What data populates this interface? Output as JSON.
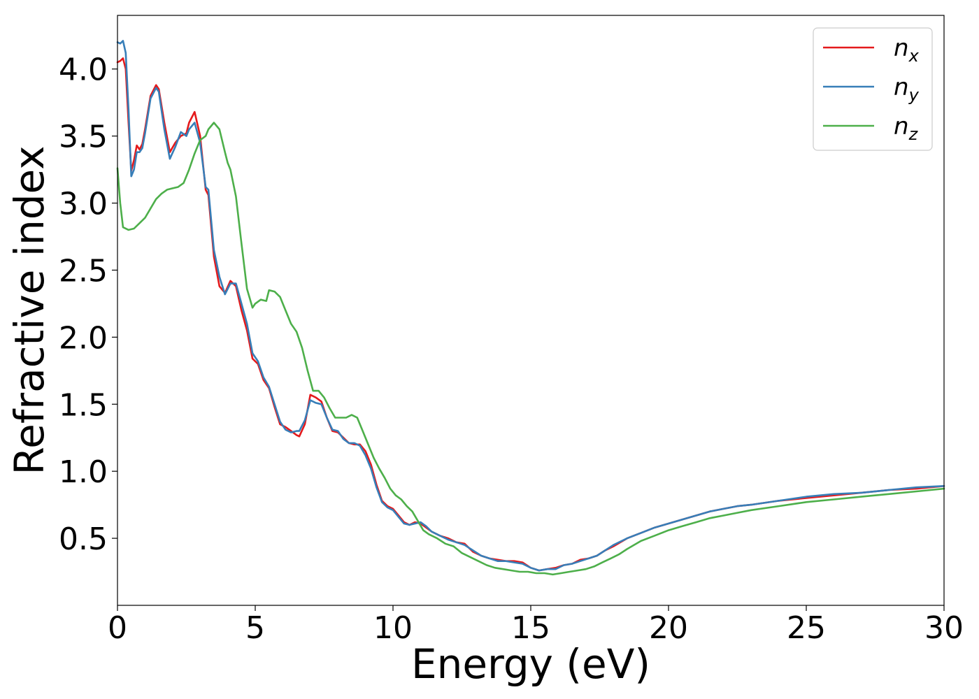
{
  "chart_data": {
    "type": "line",
    "title": "",
    "xlabel": "Energy (eV)",
    "ylabel": "Refractive index",
    "xlim": [
      0,
      30
    ],
    "ylim": [
      0.0,
      4.4
    ],
    "xticks": [
      0,
      5,
      10,
      15,
      20,
      25,
      30
    ],
    "xtick_labels": [
      "0",
      "5",
      "10",
      "15",
      "20",
      "25",
      "30"
    ],
    "yticks": [
      0.5,
      1.0,
      1.5,
      2.0,
      2.5,
      3.0,
      3.5,
      4.0
    ],
    "ytick_labels": [
      "0.5",
      "1.0",
      "1.5",
      "2.0",
      "2.5",
      "3.0",
      "3.5",
      "4.0"
    ],
    "grid": false,
    "legend": {
      "position": "top-right"
    },
    "series": [
      {
        "name": "n_x",
        "label_base": "n",
        "label_sub": "x",
        "color": "#e41a1c",
        "x": [
          0,
          0.1,
          0.2,
          0.3,
          0.4,
          0.5,
          0.6,
          0.7,
          0.8,
          0.9,
          1.0,
          1.2,
          1.4,
          1.5,
          1.7,
          1.9,
          2.1,
          2.3,
          2.5,
          2.6,
          2.8,
          3.0,
          3.2,
          3.3,
          3.5,
          3.7,
          3.9,
          4.1,
          4.3,
          4.5,
          4.7,
          4.9,
          5.1,
          5.3,
          5.5,
          5.7,
          5.9,
          6.1,
          6.3,
          6.5,
          6.6,
          6.8,
          7.0,
          7.2,
          7.4,
          7.6,
          7.8,
          8.0,
          8.2,
          8.4,
          8.6,
          8.8,
          9.0,
          9.2,
          9.4,
          9.6,
          9.8,
          10.0,
          10.2,
          10.4,
          10.6,
          10.8,
          11.0,
          11.2,
          11.4,
          11.7,
          12.0,
          12.3,
          12.6,
          12.9,
          13.2,
          13.5,
          13.8,
          14.1,
          14.4,
          14.7,
          15.0,
          15.3,
          15.6,
          15.9,
          16.2,
          16.5,
          16.8,
          17.1,
          17.4,
          17.7,
          18.0,
          18.5,
          19.0,
          19.5,
          20.0,
          20.5,
          21.0,
          21.5,
          22.0,
          22.5,
          23.0,
          24.0,
          25.0,
          26.0,
          27.0,
          28.0,
          29.0,
          30.0
        ],
        "y": [
          4.05,
          4.06,
          4.08,
          4.0,
          3.6,
          3.24,
          3.32,
          3.43,
          3.4,
          3.44,
          3.55,
          3.8,
          3.88,
          3.85,
          3.6,
          3.38,
          3.45,
          3.5,
          3.52,
          3.6,
          3.68,
          3.5,
          3.1,
          3.06,
          2.6,
          2.38,
          2.33,
          2.42,
          2.38,
          2.2,
          2.05,
          1.84,
          1.8,
          1.68,
          1.62,
          1.48,
          1.35,
          1.33,
          1.3,
          1.27,
          1.26,
          1.35,
          1.57,
          1.55,
          1.52,
          1.4,
          1.3,
          1.29,
          1.25,
          1.21,
          1.2,
          1.2,
          1.15,
          1.05,
          0.9,
          0.78,
          0.74,
          0.72,
          0.67,
          0.62,
          0.6,
          0.62,
          0.61,
          0.58,
          0.55,
          0.52,
          0.5,
          0.47,
          0.46,
          0.4,
          0.37,
          0.35,
          0.34,
          0.33,
          0.33,
          0.32,
          0.28,
          0.26,
          0.27,
          0.28,
          0.3,
          0.31,
          0.34,
          0.35,
          0.37,
          0.41,
          0.44,
          0.5,
          0.54,
          0.58,
          0.61,
          0.64,
          0.67,
          0.7,
          0.72,
          0.74,
          0.75,
          0.78,
          0.8,
          0.82,
          0.84,
          0.86,
          0.87,
          0.89
        ]
      },
      {
        "name": "n_y",
        "label_base": "n",
        "label_sub": "y",
        "color": "#377eb8",
        "x": [
          0,
          0.1,
          0.2,
          0.3,
          0.4,
          0.5,
          0.6,
          0.7,
          0.8,
          0.9,
          1.0,
          1.2,
          1.4,
          1.5,
          1.7,
          1.9,
          2.1,
          2.3,
          2.5,
          2.6,
          2.8,
          3.0,
          3.2,
          3.3,
          3.5,
          3.7,
          3.9,
          4.1,
          4.3,
          4.5,
          4.7,
          4.9,
          5.1,
          5.3,
          5.5,
          5.7,
          5.9,
          6.1,
          6.3,
          6.5,
          6.6,
          6.8,
          7.0,
          7.2,
          7.4,
          7.6,
          7.8,
          8.0,
          8.2,
          8.4,
          8.6,
          8.8,
          9.0,
          9.2,
          9.4,
          9.6,
          9.8,
          10.0,
          10.2,
          10.4,
          10.6,
          10.8,
          11.0,
          11.2,
          11.4,
          11.7,
          12.0,
          12.3,
          12.6,
          12.9,
          13.2,
          13.5,
          13.8,
          14.1,
          14.4,
          14.7,
          15.0,
          15.3,
          15.6,
          15.9,
          16.2,
          16.5,
          16.8,
          17.1,
          17.4,
          17.7,
          18.0,
          18.5,
          19.0,
          19.5,
          20.0,
          20.5,
          21.0,
          21.5,
          22.0,
          22.5,
          23.0,
          24.0,
          25.0,
          26.0,
          27.0,
          28.0,
          29.0,
          30.0
        ],
        "y": [
          4.2,
          4.19,
          4.21,
          4.12,
          3.7,
          3.2,
          3.25,
          3.38,
          3.38,
          3.41,
          3.52,
          3.78,
          3.86,
          3.83,
          3.55,
          3.33,
          3.42,
          3.53,
          3.5,
          3.55,
          3.6,
          3.45,
          3.12,
          3.1,
          2.65,
          2.45,
          2.32,
          2.4,
          2.4,
          2.25,
          2.1,
          1.88,
          1.82,
          1.7,
          1.63,
          1.5,
          1.37,
          1.31,
          1.29,
          1.3,
          1.3,
          1.38,
          1.53,
          1.51,
          1.5,
          1.4,
          1.31,
          1.3,
          1.24,
          1.21,
          1.21,
          1.19,
          1.12,
          1.02,
          0.88,
          0.77,
          0.73,
          0.71,
          0.66,
          0.61,
          0.6,
          0.61,
          0.62,
          0.59,
          0.55,
          0.52,
          0.49,
          0.47,
          0.45,
          0.41,
          0.37,
          0.35,
          0.33,
          0.33,
          0.32,
          0.31,
          0.28,
          0.26,
          0.27,
          0.27,
          0.3,
          0.31,
          0.33,
          0.35,
          0.37,
          0.41,
          0.45,
          0.5,
          0.54,
          0.58,
          0.61,
          0.64,
          0.67,
          0.7,
          0.72,
          0.74,
          0.75,
          0.78,
          0.81,
          0.83,
          0.84,
          0.86,
          0.88,
          0.89
        ]
      },
      {
        "name": "n_z",
        "label_base": "n",
        "label_sub": "z",
        "color": "#4daf4a",
        "x": [
          0,
          0.1,
          0.2,
          0.4,
          0.6,
          0.8,
          1.0,
          1.2,
          1.4,
          1.6,
          1.8,
          2.0,
          2.2,
          2.4,
          2.6,
          2.8,
          3.0,
          3.2,
          3.3,
          3.5,
          3.7,
          3.9,
          4.0,
          4.1,
          4.3,
          4.5,
          4.7,
          4.9,
          5.0,
          5.2,
          5.4,
          5.5,
          5.7,
          5.9,
          6.1,
          6.3,
          6.5,
          6.7,
          6.9,
          7.1,
          7.3,
          7.5,
          7.7,
          7.9,
          8.1,
          8.3,
          8.5,
          8.7,
          8.9,
          9.1,
          9.3,
          9.5,
          9.7,
          9.9,
          10.1,
          10.3,
          10.5,
          10.7,
          10.9,
          11.1,
          11.3,
          11.6,
          11.9,
          12.2,
          12.5,
          12.8,
          13.1,
          13.4,
          13.7,
          14.0,
          14.3,
          14.6,
          14.9,
          15.2,
          15.5,
          15.8,
          16.1,
          16.4,
          16.7,
          17.0,
          17.3,
          17.6,
          17.9,
          18.2,
          18.5,
          19.0,
          19.5,
          20.0,
          20.5,
          21.0,
          21.5,
          22.0,
          22.5,
          23.0,
          24.0,
          25.0,
          26.0,
          27.0,
          28.0,
          29.0,
          30.0
        ],
        "y": [
          3.26,
          3.0,
          2.82,
          2.8,
          2.81,
          2.85,
          2.89,
          2.96,
          3.03,
          3.07,
          3.1,
          3.11,
          3.12,
          3.15,
          3.25,
          3.37,
          3.47,
          3.5,
          3.55,
          3.6,
          3.55,
          3.38,
          3.3,
          3.25,
          3.05,
          2.7,
          2.36,
          2.22,
          2.25,
          2.28,
          2.27,
          2.35,
          2.34,
          2.3,
          2.2,
          2.1,
          2.04,
          1.92,
          1.75,
          1.6,
          1.6,
          1.55,
          1.47,
          1.4,
          1.4,
          1.4,
          1.42,
          1.4,
          1.3,
          1.2,
          1.1,
          1.02,
          0.95,
          0.87,
          0.82,
          0.79,
          0.74,
          0.7,
          0.63,
          0.56,
          0.53,
          0.5,
          0.46,
          0.44,
          0.39,
          0.36,
          0.33,
          0.3,
          0.28,
          0.27,
          0.26,
          0.25,
          0.25,
          0.24,
          0.24,
          0.23,
          0.24,
          0.25,
          0.26,
          0.27,
          0.29,
          0.32,
          0.35,
          0.38,
          0.42,
          0.48,
          0.52,
          0.56,
          0.59,
          0.62,
          0.65,
          0.67,
          0.69,
          0.71,
          0.74,
          0.77,
          0.79,
          0.81,
          0.83,
          0.85,
          0.87
        ]
      }
    ]
  }
}
